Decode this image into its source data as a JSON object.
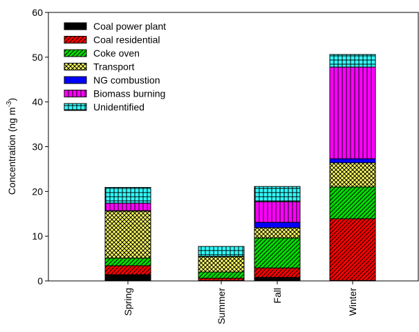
{
  "chart_data": {
    "type": "stacked_bar",
    "ylabel": {
      "text": "Concentration (ng m",
      "sup": "-3",
      "end": ")"
    },
    "categories": [
      "Spring",
      "Summer",
      "Fall",
      "Winter"
    ],
    "series": [
      {
        "name": "Coal power plant",
        "color": "#000000",
        "hatch": "solid",
        "values": [
          1.4,
          0.1,
          0.8,
          0.1
        ]
      },
      {
        "name": "Coal residential",
        "color": "#ff0000",
        "hatch": "diagonal",
        "values": [
          2.0,
          0.5,
          2.1,
          13.8
        ]
      },
      {
        "name": "Coke oven",
        "color": "#00dd00",
        "hatch": "diagonal",
        "values": [
          1.7,
          1.4,
          6.7,
          7.1
        ]
      },
      {
        "name": "Transport",
        "color": "#ffff66",
        "hatch": "crosshatch",
        "values": [
          10.5,
          3.4,
          2.3,
          5.4
        ]
      },
      {
        "name": "NG combustion",
        "color": "#0000ff",
        "hatch": "solid",
        "values": [
          0.1,
          0.0,
          1.2,
          0.9
        ]
      },
      {
        "name": "Biomass burning",
        "color": "#ff00ff",
        "hatch": "vertical",
        "values": [
          1.7,
          0.1,
          4.6,
          20.5
        ]
      },
      {
        "name": "Unidentified",
        "color": "#33ffff",
        "hatch": "grid",
        "values": [
          3.5,
          2.2,
          3.4,
          2.8
        ]
      }
    ],
    "ylim": [
      0,
      60
    ],
    "yticks": [
      0,
      10,
      20,
      30,
      40,
      50,
      60
    ],
    "legend": "upper-left"
  }
}
